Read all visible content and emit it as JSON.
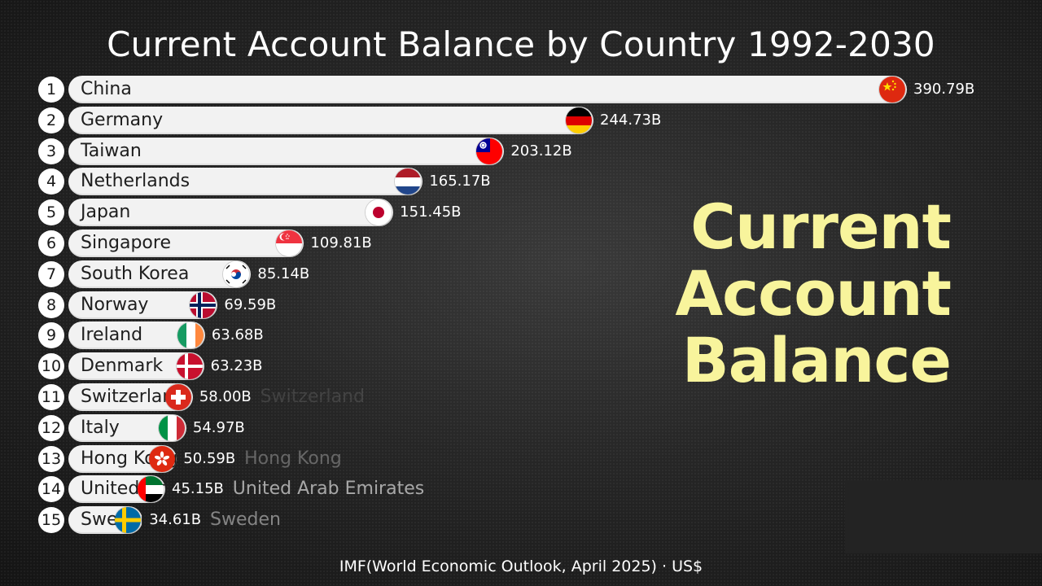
{
  "title": "Current Account Balance by Country 1992-2030",
  "side_text": [
    "Current",
    "Account",
    "Balance"
  ],
  "source": "IMF(World Economic Outlook, April 2025) · US$",
  "chart_data": {
    "type": "bar",
    "orientation": "horizontal",
    "title": "Current Account Balance by Country 1992-2030",
    "categories": [
      "China",
      "Germany",
      "Taiwan",
      "Netherlands",
      "Japan",
      "Singapore",
      "South Korea",
      "Norway",
      "Ireland",
      "Denmark",
      "Switzerland",
      "Italy",
      "Hong Kong",
      "United Arab Emirates",
      "Sweden"
    ],
    "values": [
      390.79,
      244.73,
      203.12,
      165.17,
      151.45,
      109.81,
      85.14,
      69.59,
      63.68,
      63.23,
      58.0,
      54.97,
      50.59,
      45.15,
      34.61
    ],
    "value_labels": [
      "390.79B",
      "244.73B",
      "203.12B",
      "165.17B",
      "151.45B",
      "109.81B",
      "85.14B",
      "69.59B",
      "63.68B",
      "63.23B",
      "58.00B",
      "54.97B",
      "50.59B",
      "45.15B",
      "34.61B"
    ],
    "ranks": [
      "1",
      "2",
      "3",
      "4",
      "5",
      "6",
      "7",
      "8",
      "9",
      "10",
      "11",
      "12",
      "13",
      "14",
      "15"
    ],
    "bar_labels": [
      "China",
      "Germany",
      "Taiwan",
      "Netherlands",
      "Japan",
      "Singapore",
      "South Korea",
      "Norway",
      "Ireland",
      "Denmark",
      "Switzerland",
      "Italy",
      "Hong Kong",
      "United Arab Emirates",
      "Sweden"
    ],
    "outside_labels": [
      "",
      "",
      "",
      "",
      "",
      "",
      "",
      "",
      "",
      "",
      "Switzerland",
      "",
      "Hong Kong",
      "United Arab Emirates",
      "Sweden"
    ],
    "outside_label_alpha": [
      0,
      0,
      0,
      0,
      0,
      0,
      0,
      0,
      0,
      0,
      0.12,
      0,
      0.3,
      0.6,
      0.45
    ],
    "flags": [
      "china-flag",
      "germany-flag",
      "taiwan-flag",
      "netherlands-flag",
      "japan-flag",
      "singapore-flag",
      "south-korea-flag",
      "norway-flag",
      "ireland-flag",
      "denmark-flag",
      "switzerland-flag",
      "italy-flag",
      "hong-kong-flag",
      "uae-flag",
      "sweden-flag"
    ],
    "xlim": [
      0,
      390.79
    ],
    "unit": "B",
    "grid": false,
    "legend": "none"
  },
  "colors": {
    "bar": "#f2f2f2",
    "highlight_text": "#f8f49c",
    "value_text": "#ffffff"
  }
}
